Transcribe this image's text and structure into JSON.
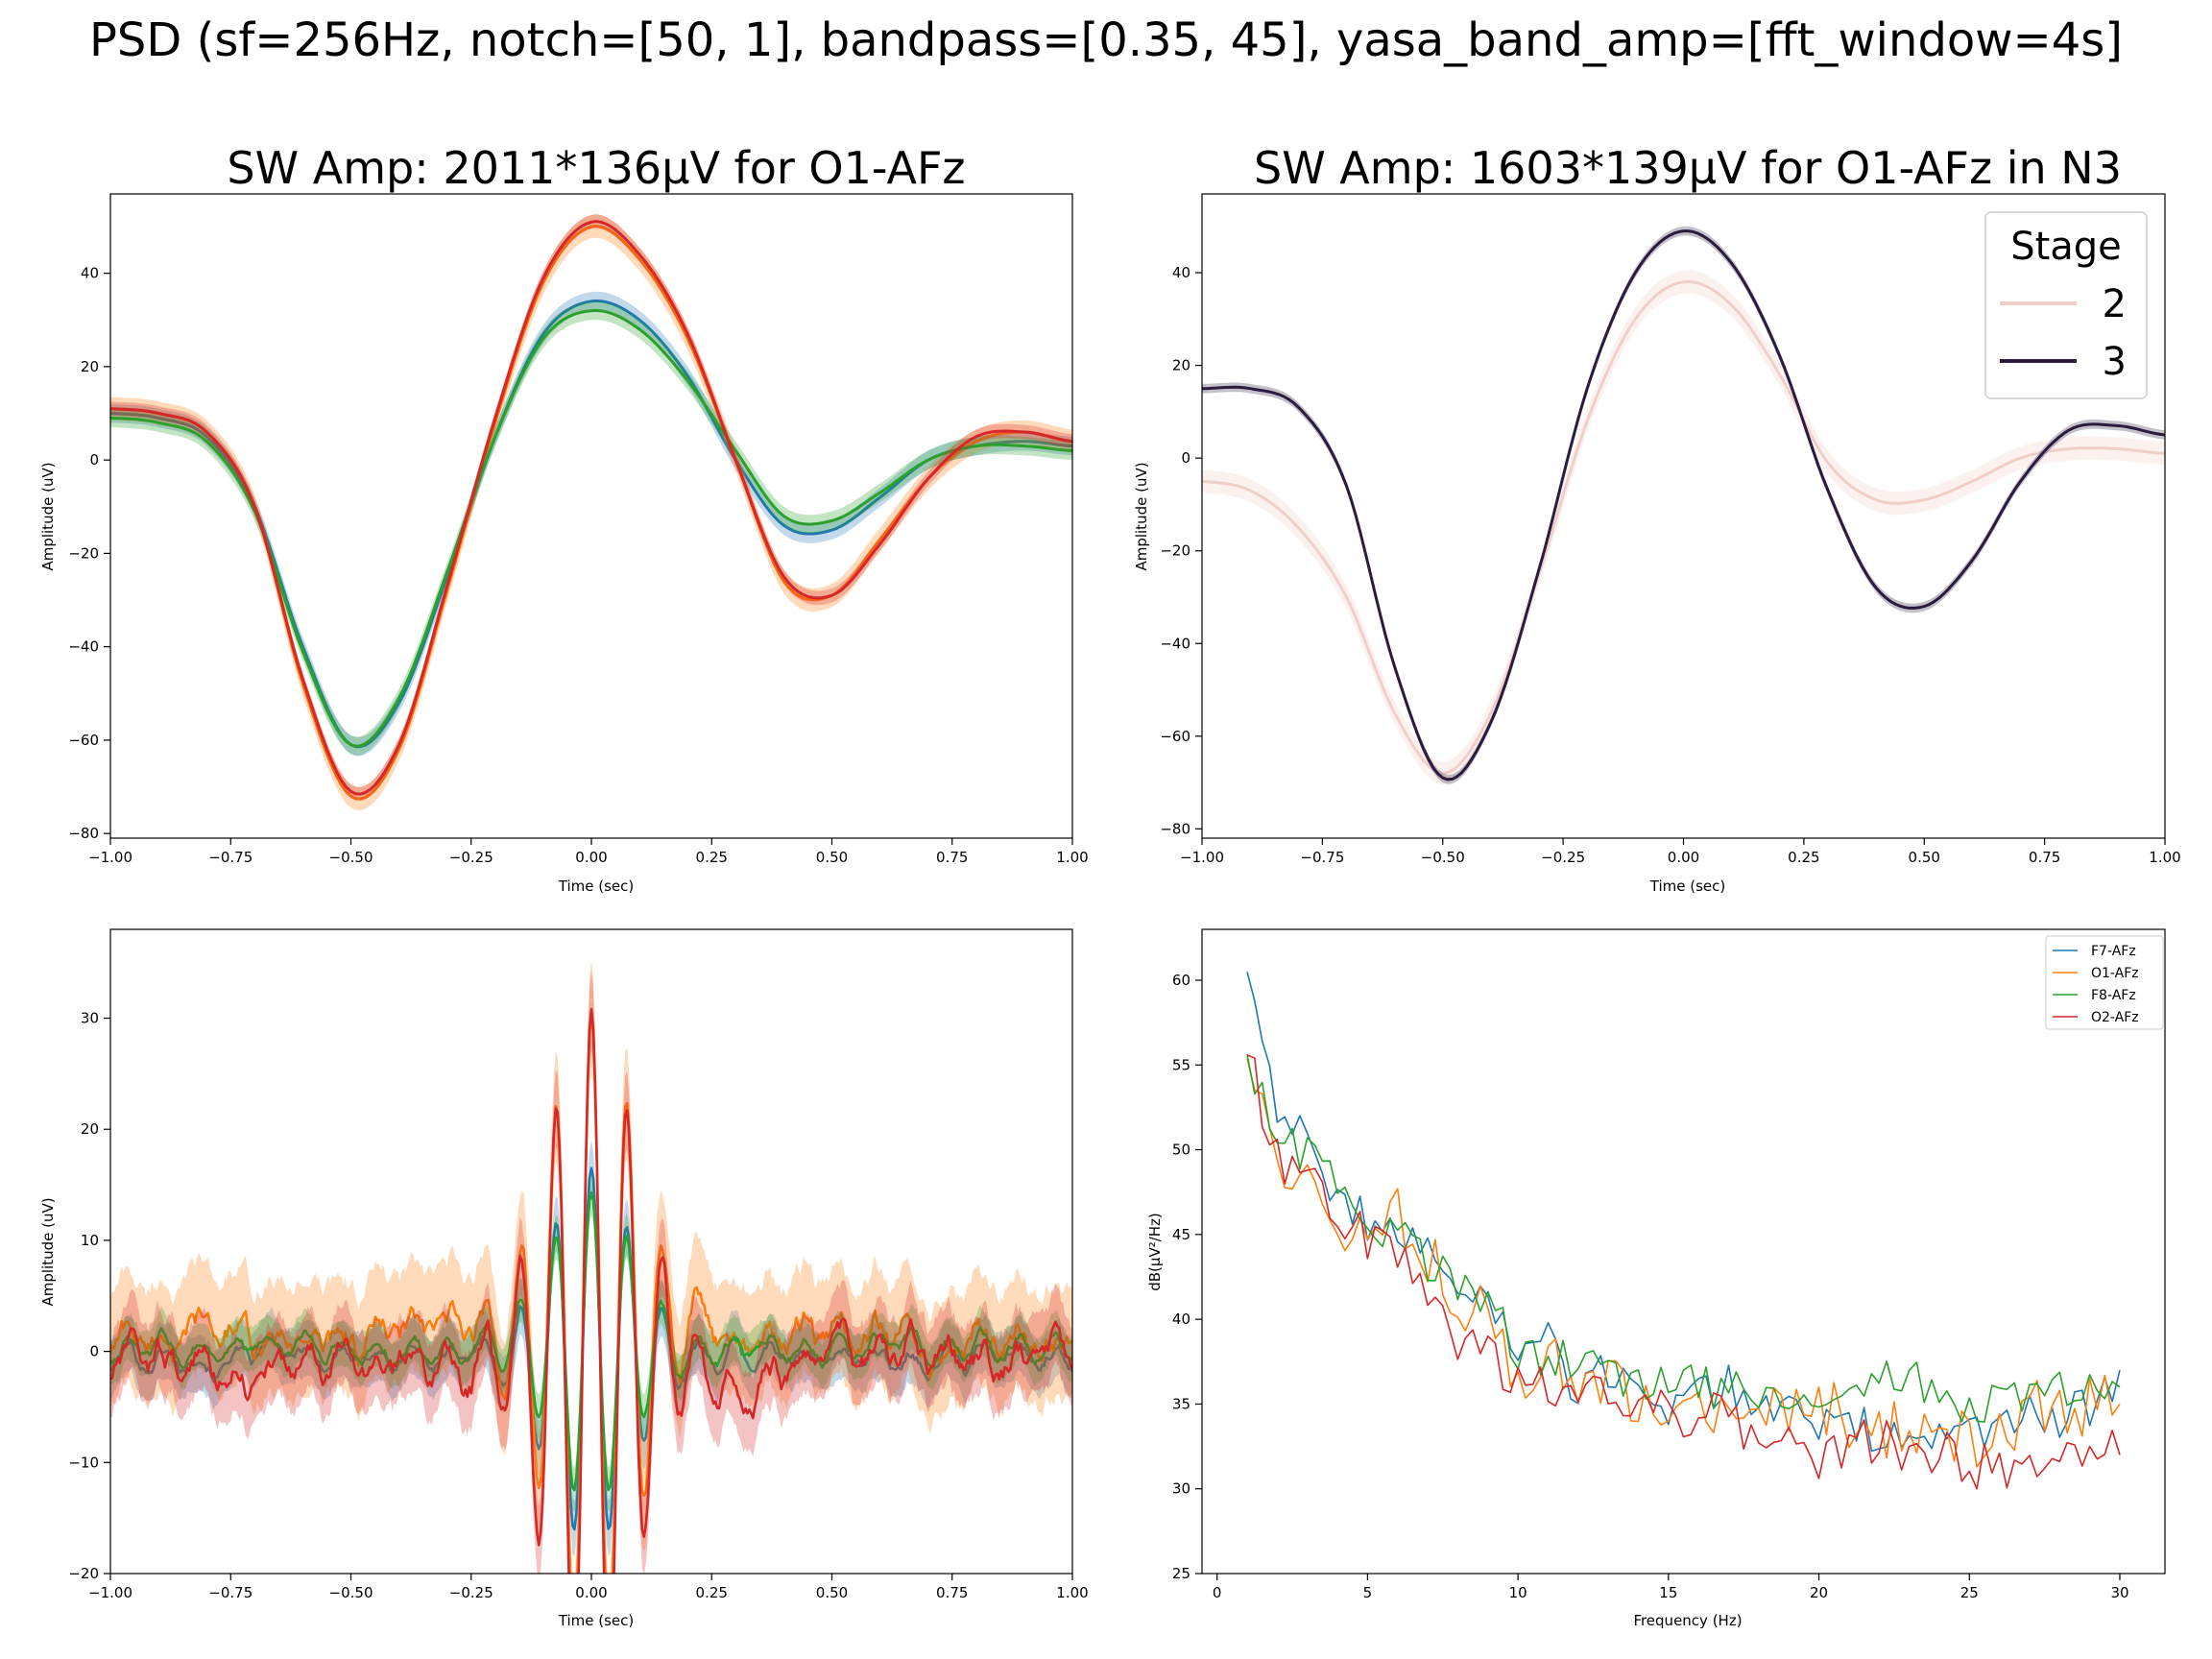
{
  "figure": {
    "suptitle": "PSD (sf=256Hz, notch=[50, 1], bandpass=[0.35, 45], yasa_band_amp=[fft_window=4s]"
  },
  "colors": {
    "F7-AFz": "#1f77b4",
    "O1-AFz": "#ff7f0e",
    "F8-AFz": "#2ca02c",
    "O2-AFz": "#d62728",
    "stage2": "#f0cfc9",
    "stage3": "#2b1b3f"
  },
  "chart_data": [
    {
      "id": "sw_amp_channels",
      "type": "line",
      "title": "SW Amp: 2011*136µV for O1-AFz",
      "xlabel": "Time (sec)",
      "ylabel": "Amplitude (uV)",
      "xlim": [
        -1.0,
        1.0
      ],
      "ylim": [
        -81,
        57
      ],
      "xticks": [
        -1.0,
        -0.75,
        -0.5,
        -0.25,
        0.0,
        0.25,
        0.5,
        0.75,
        1.0
      ],
      "xtick_labels": [
        "−1.00",
        "−0.75",
        "−0.50",
        "−0.25",
        "0.00",
        "0.25",
        "0.50",
        "0.75",
        "1.00"
      ],
      "yticks": [
        -80,
        -60,
        -40,
        -20,
        0,
        20,
        40
      ],
      "ytick_labels": [
        "−80",
        "−60",
        "−40",
        "−20",
        "0",
        "20",
        "40"
      ],
      "x": [
        -1.0,
        -0.9,
        -0.8,
        -0.7,
        -0.6,
        -0.5,
        -0.4,
        -0.3,
        -0.2,
        -0.1,
        0.0,
        0.1,
        0.2,
        0.3,
        0.4,
        0.5,
        0.6,
        0.7,
        0.8,
        0.9,
        1.0
      ],
      "series": [
        {
          "color_key": "F7-AFz",
          "values": [
            10,
            9,
            5,
            -10,
            -40,
            -61,
            -52,
            -25,
            5,
            27,
            34,
            30,
            18,
            0,
            -14,
            -15,
            -8,
            0,
            3,
            4,
            3
          ],
          "band": 2.0
        },
        {
          "color_key": "O1-AFz",
          "values": [
            11,
            10,
            6,
            -10,
            -48,
            -72,
            -62,
            -28,
            8,
            38,
            50,
            43,
            26,
            0,
            -26,
            -29,
            -17,
            -4,
            4,
            6,
            4
          ],
          "band": 2.5
        },
        {
          "color_key": "F8-AFz",
          "values": [
            9,
            8,
            4,
            -11,
            -41,
            -61,
            -51,
            -24,
            5,
            26,
            32,
            28,
            17,
            2,
            -12,
            -13,
            -7,
            0,
            3,
            3,
            2
          ],
          "band": 2.0
        },
        {
          "color_key": "O2-AFz",
          "values": [
            11,
            10,
            6,
            -10,
            -47,
            -71,
            -61,
            -27,
            9,
            39,
            51,
            44,
            27,
            0,
            -25,
            -29,
            -18,
            -4,
            5,
            6,
            4
          ],
          "band": 1.5
        }
      ]
    },
    {
      "id": "sw_amp_stages",
      "type": "line",
      "title": "SW Amp: 1603*139µV for O1-AFz in N3",
      "xlabel": "Time (sec)",
      "ylabel": "Amplitude (uV)",
      "xlim": [
        -1.0,
        1.0
      ],
      "ylim": [
        -82,
        57
      ],
      "xticks": [
        -1.0,
        -0.75,
        -0.5,
        -0.25,
        0.0,
        0.25,
        0.5,
        0.75,
        1.0
      ],
      "xtick_labels": [
        "−1.00",
        "−0.75",
        "−0.50",
        "−0.25",
        "0.00",
        "0.25",
        "0.50",
        "0.75",
        "1.00"
      ],
      "yticks": [
        -80,
        -60,
        -40,
        -20,
        0,
        20,
        40
      ],
      "ytick_labels": [
        "−80",
        "−60",
        "−40",
        "−20",
        "0",
        "20",
        "40"
      ],
      "legend": {
        "title": "Stage",
        "position": "upper right",
        "entries": [
          {
            "label": "2",
            "color_key": "stage2"
          },
          {
            "label": "3",
            "color_key": "stage3"
          }
        ]
      },
      "x": [
        -1.0,
        -0.9,
        -0.8,
        -0.7,
        -0.6,
        -0.5,
        -0.4,
        -0.3,
        -0.2,
        -0.1,
        0.0,
        0.1,
        0.2,
        0.3,
        0.4,
        0.5,
        0.6,
        0.7,
        0.8,
        0.9,
        1.0
      ],
      "series": [
        {
          "color_key": "stage2",
          "values": [
            -5,
            -7,
            -15,
            -30,
            -55,
            -68,
            -55,
            -25,
            8,
            30,
            38,
            33,
            18,
            -1,
            -9,
            -9,
            -5,
            0,
            2,
            2,
            1
          ],
          "band": 2.5
        },
        {
          "color_key": "stage3",
          "values": [
            15,
            15,
            11,
            -6,
            -45,
            -69,
            -57,
            -24,
            15,
            40,
            49,
            42,
            22,
            -7,
            -28,
            -32,
            -22,
            -5,
            6,
            7,
            5
          ],
          "band": 1.0
        }
      ]
    },
    {
      "id": "spindle_avg",
      "type": "line",
      "title": "",
      "xlabel": "Time (sec)",
      "ylabel": "Amplitude (uV)",
      "xlim": [
        -1.0,
        1.0
      ],
      "ylim": [
        -20,
        38
      ],
      "xticks": [
        -1.0,
        -0.75,
        -0.5,
        -0.25,
        0.0,
        0.25,
        0.5,
        0.75,
        1.0
      ],
      "xtick_labels": [
        "−1.00",
        "−0.75",
        "−0.50",
        "−0.25",
        "0.00",
        "0.25",
        "0.50",
        "0.75",
        "1.00"
      ],
      "yticks": [
        -20,
        -10,
        0,
        10,
        20,
        30
      ],
      "ytick_labels": [
        "−20",
        "−10",
        "0",
        "10",
        "20",
        "30"
      ],
      "carrier_hz": 13.5,
      "series": [
        {
          "color_key": "F7-AFz",
          "peak": 17,
          "envelope_sd": 0.085,
          "offset": -0.5,
          "noise": 0.9,
          "band": 2.5
        },
        {
          "color_key": "O1-AFz",
          "peak": 29,
          "envelope_sd": 0.09,
          "offset": 1.2,
          "noise": 1.8,
          "band": 5.0
        },
        {
          "color_key": "F8-AFz",
          "peak": 14,
          "envelope_sd": 0.085,
          "offset": 0.3,
          "noise": 0.8,
          "band": 2.0
        },
        {
          "color_key": "O2-AFz",
          "peak": 32,
          "envelope_sd": 0.09,
          "offset": -1.2,
          "noise": 1.8,
          "band": 3.5
        }
      ]
    },
    {
      "id": "psd",
      "type": "line",
      "title": "",
      "xlabel": "Frequency (Hz)",
      "ylabel": "dB(µV²/Hz)",
      "xlim": [
        -0.5,
        31.5
      ],
      "ylim": [
        25,
        63
      ],
      "xticks": [
        0,
        5,
        10,
        15,
        20,
        25,
        30
      ],
      "xtick_labels": [
        "0",
        "5",
        "10",
        "15",
        "20",
        "25",
        "30"
      ],
      "yticks": [
        25,
        30,
        35,
        40,
        45,
        50,
        55,
        60
      ],
      "ytick_labels": [
        "25",
        "30",
        "35",
        "40",
        "45",
        "50",
        "55",
        "60"
      ],
      "legend": {
        "position": "upper right",
        "entries": [
          {
            "label": "F7-AFz",
            "color_key": "F7-AFz"
          },
          {
            "label": "O1-AFz",
            "color_key": "O1-AFz"
          },
          {
            "label": "F8-AFz",
            "color_key": "F8-AFz"
          },
          {
            "label": "O2-AFz",
            "color_key": "O2-AFz"
          }
        ]
      },
      "x": [
        1,
        2,
        3,
        4,
        5,
        6,
        7,
        8,
        9,
        10,
        11,
        12,
        13,
        14,
        15,
        16,
        17,
        18,
        19,
        20,
        21,
        22,
        23,
        24,
        25,
        26,
        27,
        28,
        29,
        30
      ],
      "series": [
        {
          "color_key": "F7-AFz",
          "values": [
            61,
            53,
            50,
            47,
            46,
            45,
            44,
            42,
            41,
            38,
            39,
            35,
            37,
            36,
            35,
            36,
            36,
            35,
            35,
            34,
            34,
            33,
            34,
            33,
            33,
            33,
            35,
            34,
            35,
            37
          ],
          "jitter": 1.4
        },
        {
          "color_key": "O1-AFz",
          "values": [
            56,
            50,
            48,
            45,
            46,
            46,
            44,
            41,
            40,
            36,
            38,
            35,
            36,
            35,
            35,
            34,
            36,
            35,
            34,
            35,
            34,
            33,
            34,
            33,
            33,
            33,
            35,
            34,
            35,
            35
          ],
          "jitter": 1.8
        },
        {
          "color_key": "F8-AFz",
          "values": [
            56,
            50,
            50,
            48,
            46,
            45,
            43,
            42,
            41,
            38,
            38,
            37,
            37,
            36,
            36,
            36,
            36,
            35,
            36,
            35,
            36,
            36,
            37,
            35,
            35,
            35,
            36,
            36,
            36,
            36
          ],
          "jitter": 1.3
        },
        {
          "color_key": "O2-AFz",
          "values": [
            56,
            49,
            48,
            47,
            44,
            44,
            41,
            39,
            38,
            37,
            36,
            35,
            35,
            35,
            35,
            34,
            34,
            33,
            33,
            32,
            32,
            33,
            32,
            32,
            31,
            31,
            32,
            31,
            32,
            32
          ],
          "jitter": 1.7
        }
      ]
    }
  ]
}
